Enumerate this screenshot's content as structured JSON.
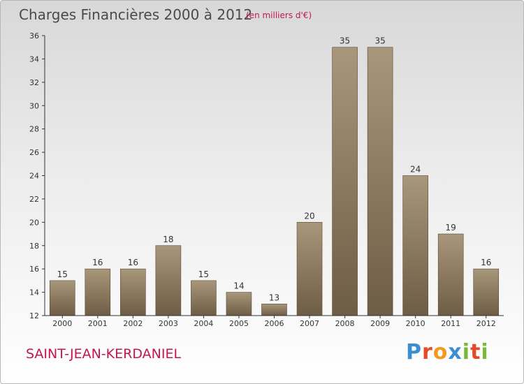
{
  "header": {
    "title": "Charges Financières 2000 à 2012",
    "subtitle": "(en milliers d'€)"
  },
  "footer": {
    "commune": "SAINT-JEAN-KERDANIEL",
    "brand": "Proxiti",
    "brand_letters": [
      {
        "ch": "P",
        "color": "#3b8fd0"
      },
      {
        "ch": "r",
        "color": "#e24b2a"
      },
      {
        "ch": "o",
        "color": "#f29a1f"
      },
      {
        "ch": "x",
        "color": "#3b8fd0"
      },
      {
        "ch": "i",
        "color": "#79b83a"
      },
      {
        "ch": "t",
        "color": "#e24b2a"
      },
      {
        "ch": "i",
        "color": "#79b83a"
      }
    ]
  },
  "colors": {
    "bar_top": "#a8977a",
    "bar_bottom": "#6e5d45",
    "bar_edge": "#5a4a35",
    "axis": "#333333",
    "text": "#333333",
    "accent": "#c0184f"
  },
  "chart_data": {
    "type": "bar",
    "title": "Charges Financières 2000 à 2012",
    "subtitle": "(en milliers d'€)",
    "categories": [
      "2000",
      "2001",
      "2002",
      "2003",
      "2004",
      "2005",
      "2006",
      "2007",
      "2008",
      "2009",
      "2010",
      "2011",
      "2012"
    ],
    "values": [
      15,
      16,
      16,
      18,
      15,
      14,
      13,
      20,
      35,
      35,
      24,
      19,
      16
    ],
    "ylim": [
      12,
      36
    ],
    "yticks": [
      12,
      14,
      16,
      18,
      20,
      22,
      24,
      26,
      28,
      30,
      32,
      34,
      36
    ],
    "data_labels": true,
    "grid": false
  }
}
